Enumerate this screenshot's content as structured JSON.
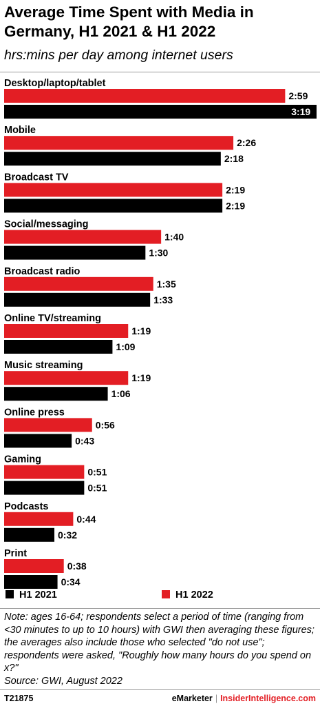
{
  "header": {
    "title": "Average Time Spent with Media in Germany, H1 2021 & H1 2022",
    "subtitle": "hrs:mins per day among internet users"
  },
  "chart_data": {
    "type": "bar",
    "orientation": "horizontal",
    "categories": [
      "Desktop/laptop/tablet",
      "Mobile",
      "Broadcast TV",
      "Social/messaging",
      "Broadcast radio",
      "Online TV/streaming",
      "Music streaming",
      "Online press",
      "Gaming",
      "Podcasts",
      "Print"
    ],
    "series": [
      {
        "name": "H1 2022",
        "color": "#e31e24",
        "values": [
          179,
          146,
          139,
          100,
          95,
          79,
          79,
          56,
          51,
          44,
          38
        ],
        "labels": [
          "2:59",
          "2:26",
          "2:19",
          "1:40",
          "1:35",
          "1:19",
          "1:19",
          "0:56",
          "0:51",
          "0:44",
          "0:38"
        ]
      },
      {
        "name": "H1 2021",
        "color": "#000000",
        "values": [
          199,
          138,
          139,
          90,
          93,
          69,
          66,
          43,
          51,
          32,
          34
        ],
        "labels": [
          "3:19",
          "2:18",
          "2:19",
          "1:30",
          "1:33",
          "1:09",
          "1:06",
          "0:43",
          "0:51",
          "0:32",
          "0:34"
        ]
      }
    ],
    "value_unit": "minutes per day",
    "xlim": [
      0,
      199
    ],
    "grid": false,
    "legend": {
      "placement": "bottom",
      "order": [
        "H1 2021",
        "H1 2022"
      ]
    }
  },
  "footnote": {
    "note": "Note: ages 16-64; respondents select a period of time (ranging from <30 minutes to up to 10 hours) with GWI then averaging these figures; the averages also include those who selected \"do not use\"; respondents were asked, \"Roughly how many hours do you spend on x?\"",
    "source": "Source:  GWI, August 2022"
  },
  "footer": {
    "chart_id": "T21875",
    "brand_left": "eMarketer",
    "separator": "|",
    "brand_right": "InsiderIntelligence.com"
  }
}
